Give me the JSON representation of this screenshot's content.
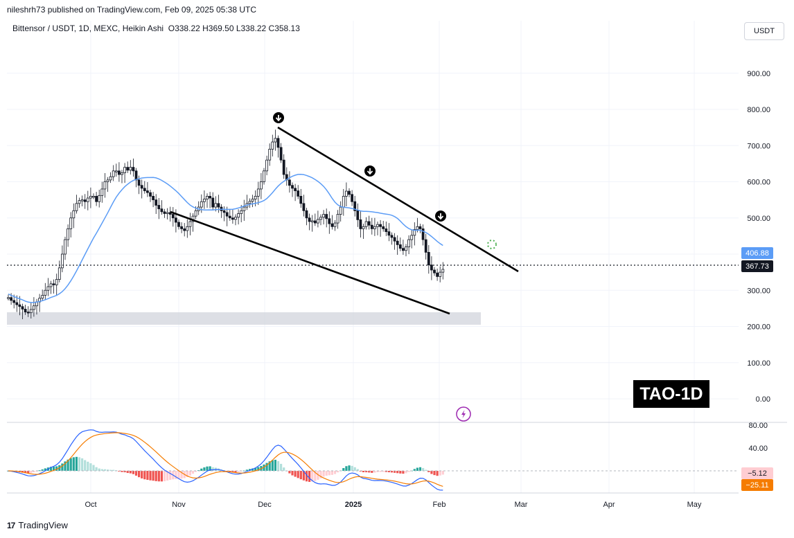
{
  "header": {
    "publisher": "nileshrh73 published on TradingView.com, Feb 09, 2025 05:38 UTC",
    "symbol_line": "Bittensor / USDT, 1D, MEXC, Heikin Ashi",
    "ohlc": "O338.22  H369.50  L338.22  C358.13",
    "currency": "USDT"
  },
  "badge": "TAO-1D",
  "footer": {
    "brand": "TradingView"
  },
  "price_tags": {
    "ma": "406.88",
    "last": "367.73"
  },
  "indicator_tags": {
    "hist": "−5.12",
    "signal": "−25.11"
  },
  "colors": {
    "up": "#26a69a",
    "down": "#ef5350",
    "ma": "#5b9cf6",
    "macd": "#2962ff",
    "signal": "#f57c00"
  },
  "chart_data": {
    "type": "candlestick",
    "chart_style": "Heikin Ashi",
    "timeframe": "1D",
    "y_axis": {
      "ticks": [
        "900.00",
        "800.00",
        "700.00",
        "600.00",
        "500.00",
        "400.00",
        "300.00",
        "200.00",
        "100.00",
        "0.00"
      ],
      "range": [
        -20,
        1010
      ]
    },
    "x_axis": {
      "ticks": [
        "Oct",
        "Nov",
        "Dec",
        "2025",
        "Feb",
        "Mar",
        "Apr",
        "May"
      ]
    },
    "start_date": "2024-08-29",
    "closes": [
      280,
      272,
      266,
      260,
      255,
      248,
      240,
      238,
      247,
      257,
      268,
      278,
      286,
      300,
      310,
      318,
      315,
      330,
      362,
      400,
      440,
      470,
      500,
      520,
      540,
      548,
      550,
      545,
      555,
      560,
      560,
      545,
      562,
      580,
      600,
      605,
      614,
      630,
      630,
      620,
      625,
      640,
      632,
      640,
      630,
      605,
      590,
      582,
      575,
      570,
      560,
      550,
      535,
      525,
      517,
      512,
      515,
      510,
      500,
      488,
      476,
      470,
      465,
      476,
      490,
      505,
      520,
      530,
      545,
      552,
      560,
      555,
      530,
      540,
      530,
      520,
      515,
      505,
      500,
      496,
      502,
      512,
      520,
      530,
      540,
      546,
      552,
      560,
      580,
      600,
      630,
      660,
      690,
      710,
      720,
      695,
      660,
      620,
      605,
      590,
      582,
      575,
      560,
      540,
      520,
      500,
      490,
      492,
      486,
      496,
      502,
      510,
      498,
      484,
      476,
      486,
      510,
      530,
      560,
      574,
      565,
      545,
      520,
      495,
      470,
      476,
      490,
      480,
      470,
      476,
      482,
      476,
      470,
      462,
      452,
      446,
      436,
      426,
      416,
      410,
      420,
      440,
      452,
      468,
      476,
      470,
      440,
      405,
      370,
      356,
      348,
      338,
      350,
      358
    ],
    "ma_line": "blue line, roughly a 20-day average of the candles",
    "macd_panel": {
      "ticks": [
        "80.00",
        "40.00"
      ],
      "hist_last": -5.12,
      "signal_last": -25.11
    }
  }
}
